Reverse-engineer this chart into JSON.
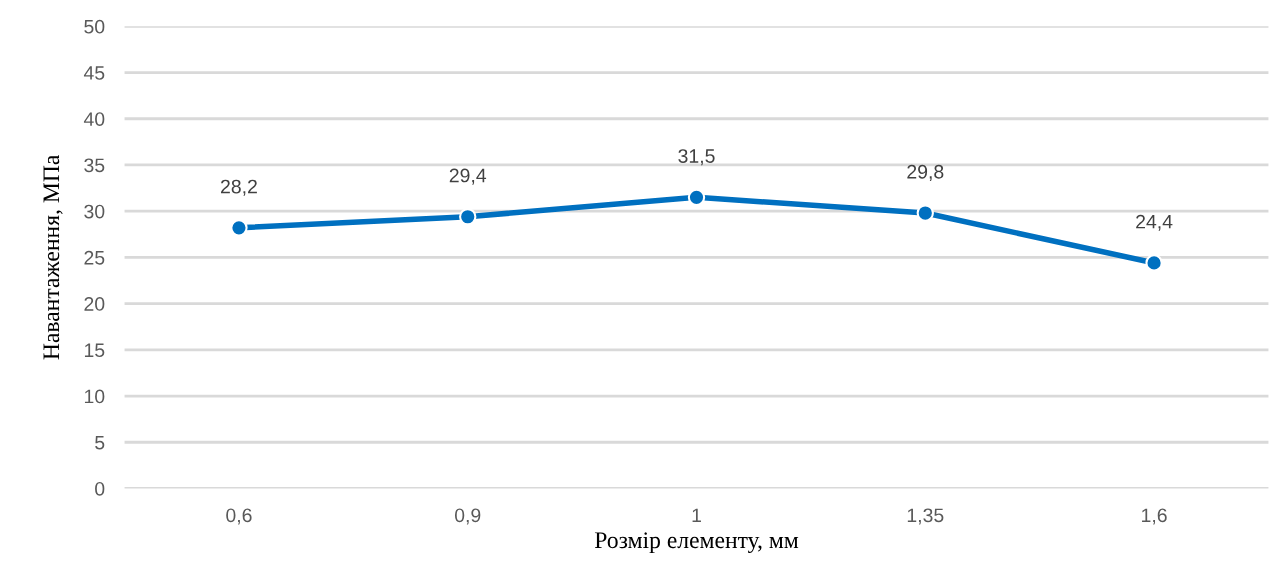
{
  "chart_data": {
    "type": "line",
    "xlabel": "Розмір елементу, мм",
    "ylabel": "Навантаження, МПа",
    "categories": [
      "0,6",
      "0,9",
      "1",
      "1,35",
      "1,6"
    ],
    "series": [
      {
        "color": "#0070c0",
        "values": [
          28.2,
          29.4,
          31.5,
          29.8,
          24.4
        ],
        "value_labels": [
          "28,2",
          "29,4",
          "31,5",
          "29,8",
          "24,4"
        ]
      }
    ],
    "ylim": [
      0,
      50
    ],
    "yticks": [
      0,
      5,
      10,
      15,
      20,
      25,
      30,
      35,
      40,
      45,
      50
    ],
    "grid": "y",
    "marker": "circle",
    "line_style": "solid",
    "legend": false
  }
}
